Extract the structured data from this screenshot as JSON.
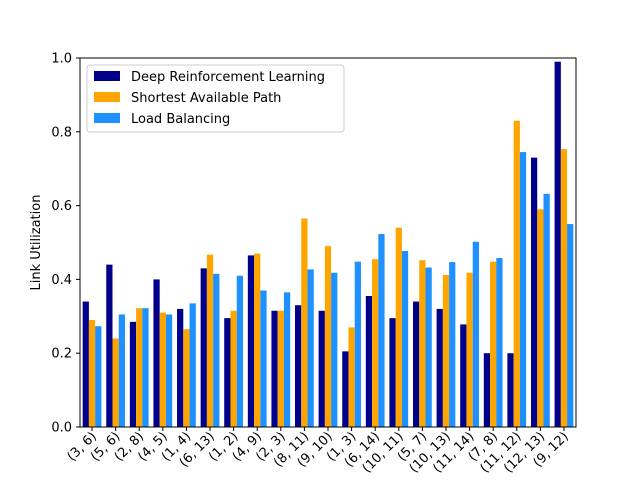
{
  "chart_data": {
    "type": "bar",
    "title": "",
    "xlabel": "",
    "ylabel": "Link Utilization",
    "ylim": [
      0,
      1.0
    ],
    "yticks": [
      "0.0",
      "0.2",
      "0.4",
      "0.6",
      "0.8",
      "1.0"
    ],
    "legend_position": "top-left",
    "grid": false,
    "categories": [
      "(3, 6)",
      "(5, 6)",
      "(2, 8)",
      "(4, 5)",
      "(1, 4)",
      "(6, 13)",
      "(1, 2)",
      "(4, 9)",
      "(2, 3)",
      "(8, 11)",
      "(9, 10)",
      "(1, 3)",
      "(6, 14)",
      "(10, 11)",
      "(5, 7)",
      "(10, 13)",
      "(11, 14)",
      "(7, 8)",
      "(11, 12)",
      "(12, 13)",
      "(9, 12)"
    ],
    "series": [
      {
        "name": "Deep Reinforcement Learning",
        "color": "#00008b",
        "values": [
          0.34,
          0.44,
          0.285,
          0.4,
          0.32,
          0.43,
          0.295,
          0.465,
          0.315,
          0.33,
          0.315,
          0.205,
          0.355,
          0.295,
          0.34,
          0.32,
          0.278,
          0.2,
          0.2,
          0.73,
          0.99
        ]
      },
      {
        "name": "Shortest Available Path",
        "color": "#ffa500",
        "values": [
          0.29,
          0.24,
          0.322,
          0.31,
          0.265,
          0.467,
          0.315,
          0.47,
          0.315,
          0.565,
          0.49,
          0.27,
          0.455,
          0.54,
          0.452,
          0.412,
          0.418,
          0.448,
          0.83,
          0.59,
          0.753
        ]
      },
      {
        "name": "Load Balancing",
        "color": "#1e90ff",
        "values": [
          0.273,
          0.305,
          0.322,
          0.305,
          0.335,
          0.415,
          0.41,
          0.37,
          0.365,
          0.427,
          0.418,
          0.448,
          0.523,
          0.477,
          0.432,
          0.447,
          0.502,
          0.458,
          0.745,
          0.632,
          0.55
        ]
      }
    ]
  }
}
